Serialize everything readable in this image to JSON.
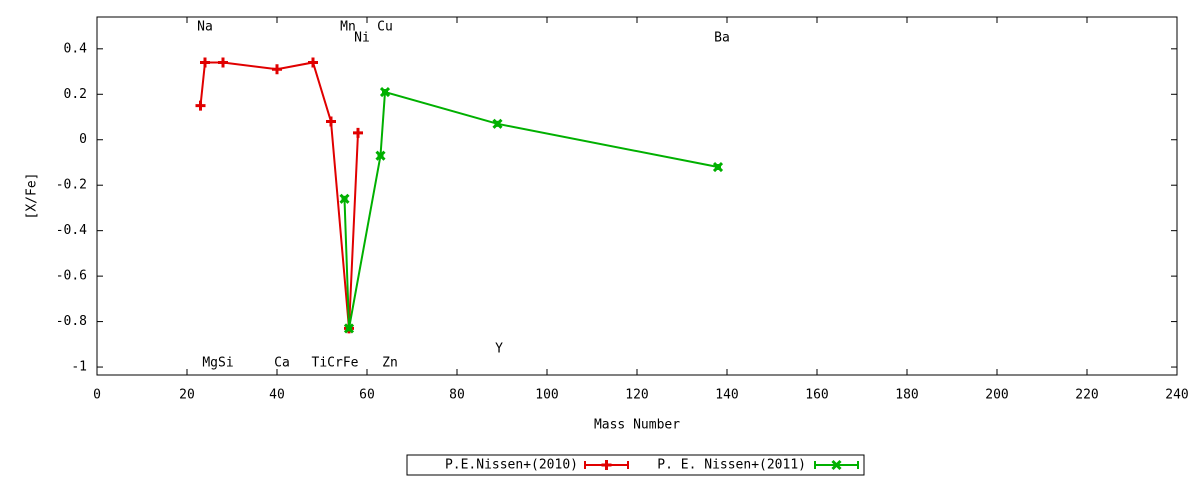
{
  "chart_data": {
    "type": "line",
    "xlabel": "Mass Number",
    "ylabel": "[X/Fe]",
    "xlim": [
      0,
      240
    ],
    "ylim": [
      -1.035,
      0.54
    ],
    "xticks": [
      0,
      20,
      40,
      60,
      80,
      100,
      120,
      140,
      160,
      180,
      200,
      220,
      240
    ],
    "yticks": [
      -1,
      -0.8,
      -0.6,
      -0.4,
      -0.2,
      0,
      0.2,
      0.4
    ],
    "series": [
      {
        "name": "P.E.Nissen+(2010)",
        "color": "#e00000",
        "x": [
          23,
          24,
          28,
          40,
          48,
          52,
          56,
          58
        ],
        "values": [
          0.15,
          0.34,
          0.34,
          0.31,
          0.34,
          0.08,
          -0.83,
          0.03
        ]
      },
      {
        "name": "P. E. Nissen+(2011)",
        "color": "#00b000",
        "x": [
          55,
          56,
          63,
          64,
          89,
          138
        ],
        "values": [
          -0.26,
          -0.83,
          -0.07,
          0.21,
          0.07,
          -0.12
        ]
      }
    ],
    "annotations": [
      "Na",
      "Mn",
      "Ni",
      "Cu",
      "Ba",
      "MgSi",
      "Ca",
      "TiCrFe",
      "Zn",
      "Y"
    ],
    "legend": "bottom"
  }
}
